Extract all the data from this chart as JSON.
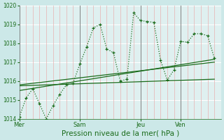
{
  "background_color": "#cce8e8",
  "plot_bg_color": "#dff0f0",
  "grid_h_color": "#ffffff",
  "grid_v_minor_color": "#e8b0b0",
  "grid_v_major_color": "#808080",
  "line_color": "#1a6b1a",
  "xlabel": "Pression niveau de la mer( hPa )",
  "xlabel_fontsize": 7.5,
  "ylim": [
    1014,
    1020
  ],
  "ytick_labels": [
    "1014",
    "1015",
    "1016",
    "1017",
    "1018",
    "1019",
    "1020"
  ],
  "ytick_values": [
    1014,
    1015,
    1016,
    1017,
    1018,
    1019,
    1020
  ],
  "day_labels": [
    "Mer",
    "Sam",
    "Jeu",
    "Ven"
  ],
  "day_positions": [
    0,
    9,
    18,
    24
  ],
  "xlim": [
    0,
    30
  ],
  "series1_x": [
    0,
    1,
    2,
    3,
    4,
    5,
    6,
    7,
    8,
    9,
    10,
    11,
    12,
    13,
    14,
    15,
    16,
    17,
    18,
    19,
    20,
    21,
    22,
    23,
    24,
    25,
    26,
    27,
    28,
    29
  ],
  "series1_y": [
    1014.1,
    1015.1,
    1015.6,
    1014.8,
    1014.0,
    1014.7,
    1015.3,
    1015.8,
    1015.9,
    1016.9,
    1017.8,
    1018.8,
    1019.0,
    1017.7,
    1017.5,
    1016.0,
    1016.1,
    1019.6,
    1019.2,
    1019.15,
    1019.1,
    1017.1,
    1016.05,
    1016.6,
    1018.1,
    1018.05,
    1018.5,
    1018.5,
    1018.4,
    1017.2
  ],
  "trend1_x": [
    0,
    29
  ],
  "trend1_y": [
    1015.8,
    1017.0
  ],
  "trend2_x": [
    0,
    29
  ],
  "trend2_y": [
    1015.75,
    1016.1
  ],
  "trend3_x": [
    0,
    29
  ],
  "trend3_y": [
    1015.5,
    1017.15
  ],
  "figsize": [
    3.2,
    2.0
  ],
  "dpi": 100
}
